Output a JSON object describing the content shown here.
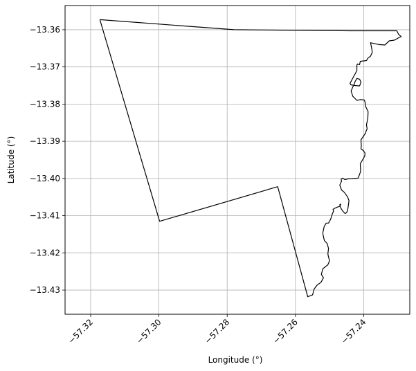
{
  "chart_data": {
    "type": "line",
    "xlabel": "Longitude (°)",
    "ylabel": "Latitude (°)",
    "xlim": [
      -57.3275,
      -57.2265
    ],
    "ylim": [
      -13.4365,
      -13.3535
    ],
    "grid": true,
    "x_ticks": [
      {
        "value": -57.32,
        "label": "−57.32"
      },
      {
        "value": -57.3,
        "label": "−57.30"
      },
      {
        "value": -57.28,
        "label": "−57.28"
      },
      {
        "value": -57.26,
        "label": "−57.26"
      },
      {
        "value": -57.24,
        "label": "−57.24"
      }
    ],
    "y_ticks": [
      {
        "value": -13.36,
        "label": "−13.36"
      },
      {
        "value": -13.37,
        "label": "−13.37"
      },
      {
        "value": -13.38,
        "label": "−13.38"
      },
      {
        "value": -13.39,
        "label": "−13.39"
      },
      {
        "value": -13.4,
        "label": "−13.40"
      },
      {
        "value": -13.41,
        "label": "−13.41"
      },
      {
        "value": -13.42,
        "label": "−13.42"
      },
      {
        "value": -13.43,
        "label": "−13.43"
      }
    ],
    "series": [
      {
        "color": "#000000",
        "x": [
          -57.3173,
          -57.2998,
          -57.2652,
          -57.2564,
          -57.255,
          -57.2545,
          -57.2537,
          -57.2525,
          -57.2518,
          -57.2524,
          -57.252,
          -57.2505,
          -57.25,
          -57.2503,
          -57.2505,
          -57.2503,
          -57.2507,
          -57.2515,
          -57.2517,
          -57.252,
          -57.2516,
          -57.251,
          -57.2503,
          -57.2497,
          -57.2493,
          -57.2488,
          -57.249,
          -57.2485,
          -57.2477,
          -57.247,
          -57.2467,
          -57.247,
          -57.2468,
          -57.2462,
          -57.2455,
          -57.245,
          -57.2447,
          -57.2445,
          -57.2443,
          -57.2447,
          -57.2457,
          -57.2465,
          -57.247,
          -57.2467,
          -57.2465,
          -57.2466,
          -57.2462,
          -57.2455,
          -57.2445,
          -57.2432,
          -57.2416,
          -57.2409,
          -57.241,
          -57.2402,
          -57.2397,
          -57.2396,
          -57.24,
          -57.2408,
          -57.2407,
          -57.2408,
          -57.2396,
          -57.239,
          -57.2392,
          -57.2388,
          -57.2387,
          -57.2395,
          -57.2396,
          -57.2398,
          -57.241,
          -57.242,
          -57.2432,
          -57.2437,
          -57.2432,
          -57.2428,
          -57.2425,
          -57.242,
          -57.2412,
          -57.2408,
          -57.2412,
          -57.2426,
          -57.2438,
          -57.244,
          -57.242,
          -57.242,
          -57.2418,
          -57.2412,
          -57.241,
          -57.2392,
          -57.2387,
          -57.238,
          -57.2375,
          -57.2377,
          -57.238,
          -57.237,
          -57.2355,
          -57.2338,
          -57.2325,
          -57.231,
          -57.23,
          -57.2295,
          -57.229,
          -57.2298,
          -57.2303,
          -57.2305,
          -57.232,
          -57.244,
          -57.278,
          -57.3173
        ],
        "y": [
          -13.3573,
          -13.4115,
          -13.4022,
          -13.4318,
          -13.4313,
          -13.4297,
          -13.4287,
          -13.4279,
          -13.4267,
          -13.4258,
          -13.4243,
          -13.4232,
          -13.4221,
          -13.4211,
          -13.4203,
          -13.4188,
          -13.4175,
          -13.4167,
          -13.416,
          -13.4147,
          -13.413,
          -13.412,
          -13.412,
          -13.411,
          -13.4098,
          -13.4087,
          -13.4083,
          -13.408,
          -13.4077,
          -13.4075,
          -13.4069,
          -13.407,
          -13.4078,
          -13.4087,
          -13.4094,
          -13.4092,
          -13.4085,
          -13.4073,
          -13.406,
          -13.405,
          -13.4037,
          -13.4031,
          -13.4018,
          -13.4011,
          -13.4008,
          -13.4002,
          -13.3999,
          -13.4003,
          -13.4001,
          -13.4,
          -13.3999,
          -13.3981,
          -13.396,
          -13.3948,
          -13.394,
          -13.3932,
          -13.3926,
          -13.392,
          -13.3913,
          -13.3896,
          -13.388,
          -13.3866,
          -13.3856,
          -13.3838,
          -13.382,
          -13.3805,
          -13.3795,
          -13.3789,
          -13.3788,
          -13.379,
          -13.3779,
          -13.3765,
          -13.3754,
          -13.3747,
          -13.3739,
          -13.3731,
          -13.3733,
          -13.3741,
          -13.3751,
          -13.375,
          -13.3748,
          -13.3744,
          -13.371,
          -13.3695,
          -13.3692,
          -13.3694,
          -13.3685,
          -13.3683,
          -13.3676,
          -13.3671,
          -13.3661,
          -13.3648,
          -13.3635,
          -13.3637,
          -13.364,
          -13.3641,
          -13.363,
          -13.3628,
          -13.3623,
          -13.362,
          -13.3619,
          -13.3612,
          -13.3603,
          -13.3603,
          -13.3603,
          -13.3603,
          -13.36,
          -13.3573
        ]
      }
    ]
  }
}
